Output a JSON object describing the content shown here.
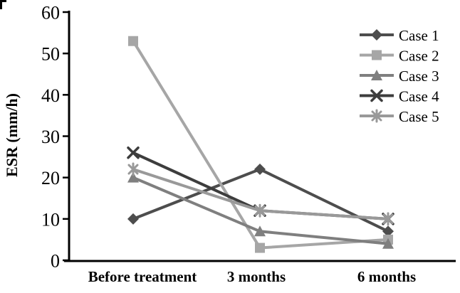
{
  "chart_data": {
    "type": "line",
    "title": "",
    "ylabel": "ESR (mm/h)",
    "xlabel": "",
    "categories": [
      "Before treatment",
      "3 months",
      "6 months"
    ],
    "ylim": [
      0,
      60
    ],
    "yticks": [
      0,
      10,
      20,
      30,
      40,
      50,
      60
    ],
    "grid": false,
    "legend_position": "top-right",
    "legend_border": false,
    "axis_color": "#000000",
    "text_color": "#000000",
    "series": [
      {
        "name": "Case 1",
        "marker": "diamond",
        "color": "#4d4d4d",
        "values": [
          10,
          22,
          7
        ]
      },
      {
        "name": "Case 2",
        "marker": "square",
        "color": "#a6a6a6",
        "values": [
          53,
          3,
          5
        ]
      },
      {
        "name": "Case 3",
        "marker": "triangle",
        "color": "#7f7f7f",
        "values": [
          20,
          7,
          4
        ]
      },
      {
        "name": "Case 4",
        "marker": "x",
        "color": "#3d3d3d",
        "values": [
          26,
          12,
          10
        ]
      },
      {
        "name": "Case 5",
        "marker": "asterisk",
        "color": "#999999",
        "values": [
          22,
          12,
          10
        ]
      }
    ]
  }
}
